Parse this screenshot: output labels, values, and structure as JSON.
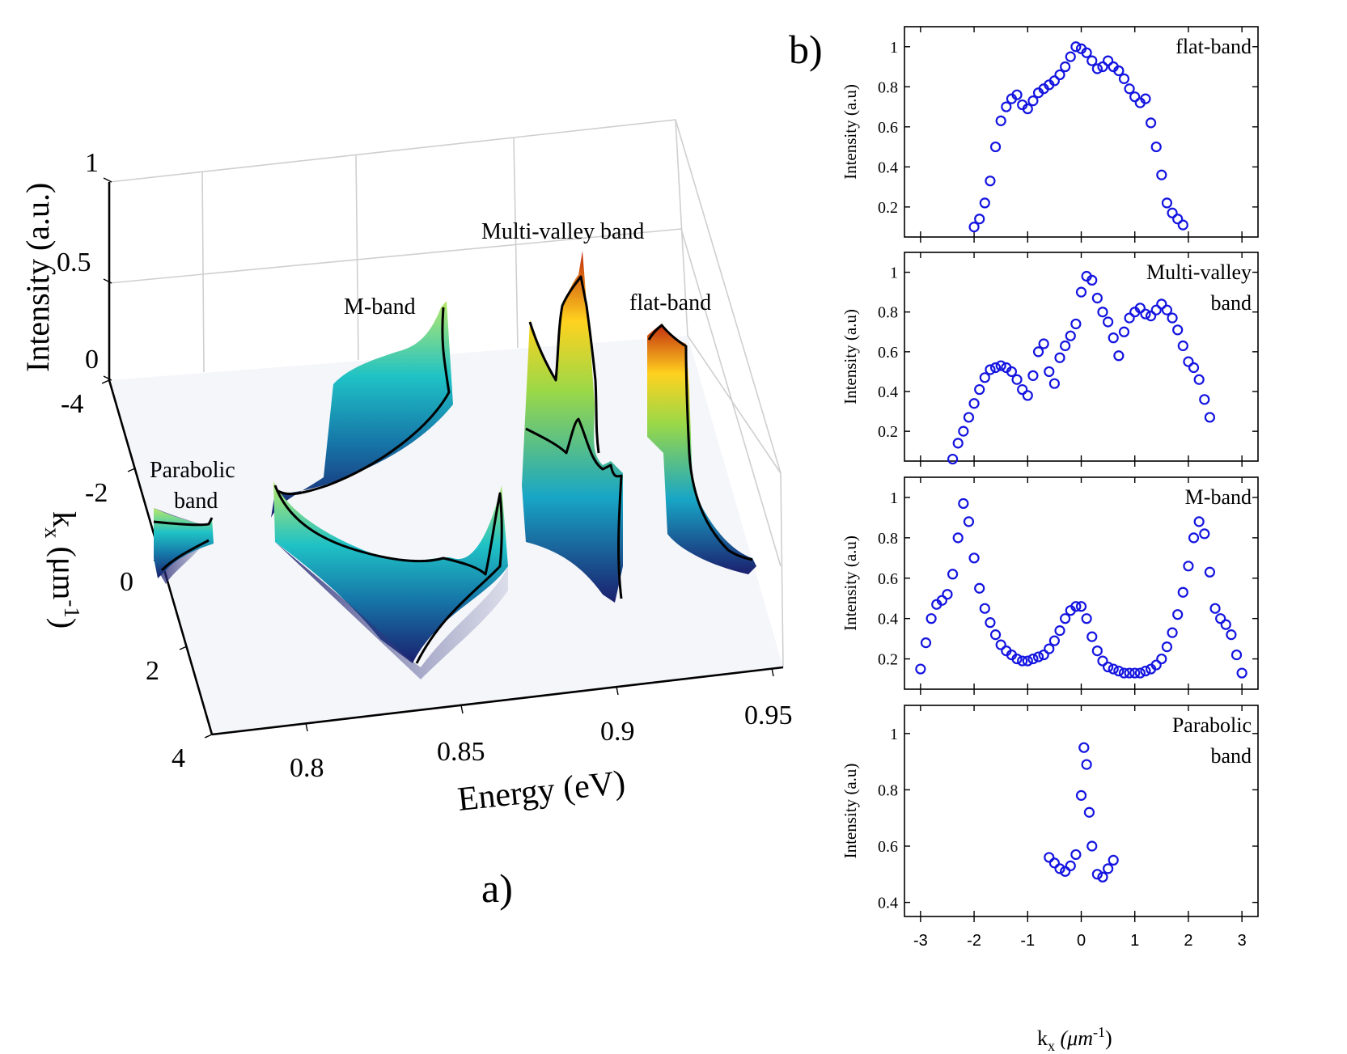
{
  "panel_a": {
    "panel_label": "a)",
    "title": "",
    "z_axis_label": "Intensity (a.u.)",
    "y_axis_label": "k",
    "y_axis_label_sub": "x",
    "y_axis_label_unit": " (μm",
    "y_axis_label_exp": "-1",
    "y_axis_label_close": ")",
    "x_axis_label": "Energy (eV)",
    "z_ticks": [
      "0",
      "0.5",
      "1"
    ],
    "y_ticks": [
      "-4",
      "-2",
      "0",
      "2",
      "4"
    ],
    "x_ticks": [
      "0.8",
      "0.85",
      "0.9",
      "0.95"
    ],
    "annotations": {
      "parabolic_line1": "Parabolic",
      "parabolic_line2": "band",
      "m_band": "M-band",
      "multi_valley": "Multi-valley band",
      "flat_band": "flat-band"
    },
    "colors": {
      "low": "#1b1f6e",
      "mid": "#1fb0c8",
      "high": "#ffd21f",
      "peak": "#b81c0c",
      "floor": "#c9cce0"
    }
  },
  "panel_b": {
    "panel_label": "b)",
    "ylabel": "Intensity (a.u)",
    "xlabel_main": "k",
    "xlabel_sub": "x",
    "xlabel_unit": " (μm",
    "xlabel_exp": "-1",
    "xlabel_close": ")",
    "x_ticks": [
      "-3",
      "-2",
      "-1",
      "0",
      "1",
      "2",
      "3"
    ],
    "marker_color": "#1414e0"
  },
  "chart_data": [
    {
      "type": "surface",
      "title": "",
      "xlabel": "Energy (eV)",
      "ylabel": "k_x (μm^-1)",
      "zlabel": "Intensity (a.u.)",
      "xlim": [
        0.78,
        0.95
      ],
      "ylim": [
        -4,
        4
      ],
      "zlim": [
        0,
        1
      ],
      "bands": [
        {
          "name": "Parabolic band",
          "energy_at_k0": 0.78
        },
        {
          "name": "M-band",
          "energy_at_k0": 0.81,
          "energy_at_kmax": 0.855
        },
        {
          "name": "Multi-valley band",
          "energy_range": [
            0.87,
            0.9
          ]
        },
        {
          "name": "flat-band",
          "energy": 0.91
        }
      ]
    },
    {
      "type": "scatter",
      "label_line1": "flat-band",
      "label_line2": "",
      "xlim": [
        -3.3,
        3.3
      ],
      "ylim": [
        0.05,
        1.1
      ],
      "yticks": [
        "0.2",
        "0.4",
        "0.6",
        "0.8",
        "1"
      ],
      "x": [
        -2.0,
        -1.9,
        -1.8,
        -1.7,
        -1.6,
        -1.5,
        -1.4,
        -1.3,
        -1.2,
        -1.1,
        -1.0,
        -0.9,
        -0.8,
        -0.7,
        -0.6,
        -0.5,
        -0.4,
        -0.3,
        -0.2,
        -0.1,
        0.0,
        0.1,
        0.2,
        0.3,
        0.4,
        0.5,
        0.6,
        0.7,
        0.8,
        0.9,
        1.0,
        1.1,
        1.2,
        1.3,
        1.4,
        1.5,
        1.6,
        1.7,
        1.8,
        1.9
      ],
      "y": [
        0.1,
        0.14,
        0.22,
        0.33,
        0.5,
        0.63,
        0.7,
        0.74,
        0.76,
        0.71,
        0.69,
        0.73,
        0.77,
        0.79,
        0.81,
        0.83,
        0.86,
        0.9,
        0.95,
        1.0,
        0.99,
        0.97,
        0.93,
        0.89,
        0.9,
        0.93,
        0.9,
        0.88,
        0.84,
        0.79,
        0.75,
        0.72,
        0.74,
        0.62,
        0.5,
        0.36,
        0.22,
        0.17,
        0.14,
        0.11
      ]
    },
    {
      "type": "scatter",
      "label_line1": "Multi-valley",
      "label_line2": "band",
      "xlim": [
        -3.3,
        3.3
      ],
      "ylim": [
        0.05,
        1.1
      ],
      "yticks": [
        "0.2",
        "0.4",
        "0.6",
        "0.8",
        "1"
      ],
      "x": [
        -2.4,
        -2.3,
        -2.2,
        -2.1,
        -2.0,
        -1.9,
        -1.8,
        -1.7,
        -1.6,
        -1.5,
        -1.4,
        -1.3,
        -1.2,
        -1.1,
        -1.0,
        -0.9,
        -0.8,
        -0.7,
        -0.6,
        -0.5,
        -0.4,
        -0.3,
        -0.2,
        -0.1,
        0.0,
        0.1,
        0.2,
        0.3,
        0.4,
        0.5,
        0.6,
        0.7,
        0.8,
        0.9,
        1.0,
        1.1,
        1.2,
        1.3,
        1.4,
        1.5,
        1.6,
        1.7,
        1.8,
        1.9,
        2.0,
        2.1,
        2.2,
        2.3,
        2.4
      ],
      "y": [
        0.06,
        0.14,
        0.2,
        0.27,
        0.34,
        0.41,
        0.47,
        0.51,
        0.52,
        0.53,
        0.52,
        0.5,
        0.46,
        0.41,
        0.38,
        0.48,
        0.6,
        0.64,
        0.5,
        0.44,
        0.57,
        0.63,
        0.68,
        0.74,
        0.9,
        0.98,
        0.96,
        0.87,
        0.8,
        0.75,
        0.67,
        0.58,
        0.7,
        0.77,
        0.8,
        0.82,
        0.79,
        0.78,
        0.81,
        0.84,
        0.81,
        0.77,
        0.71,
        0.63,
        0.55,
        0.52,
        0.46,
        0.36,
        0.27
      ]
    },
    {
      "type": "scatter",
      "label_line1": "M-band",
      "label_line2": "",
      "xlim": [
        -3.3,
        3.3
      ],
      "ylim": [
        0.05,
        1.1
      ],
      "yticks": [
        "0.2",
        "0.4",
        "0.6",
        "0.8",
        "1"
      ],
      "x": [
        -3.0,
        -2.9,
        -2.8,
        -2.7,
        -2.6,
        -2.5,
        -2.4,
        -2.3,
        -2.2,
        -2.1,
        -2.0,
        -1.9,
        -1.8,
        -1.7,
        -1.6,
        -1.5,
        -1.4,
        -1.3,
        -1.2,
        -1.1,
        -1.0,
        -0.9,
        -0.8,
        -0.7,
        -0.6,
        -0.5,
        -0.4,
        -0.3,
        -0.2,
        -0.1,
        0.0,
        0.1,
        0.2,
        0.3,
        0.4,
        0.5,
        0.6,
        0.7,
        0.8,
        0.9,
        1.0,
        1.1,
        1.2,
        1.3,
        1.4,
        1.5,
        1.6,
        1.7,
        1.8,
        1.9,
        2.0,
        2.1,
        2.2,
        2.3,
        2.4,
        2.5,
        2.6,
        2.7,
        2.8,
        2.9,
        3.0
      ],
      "y": [
        0.15,
        0.28,
        0.4,
        0.47,
        0.49,
        0.52,
        0.62,
        0.8,
        0.97,
        0.88,
        0.7,
        0.55,
        0.45,
        0.38,
        0.32,
        0.27,
        0.24,
        0.22,
        0.2,
        0.19,
        0.19,
        0.2,
        0.21,
        0.22,
        0.25,
        0.29,
        0.34,
        0.4,
        0.44,
        0.46,
        0.46,
        0.4,
        0.31,
        0.24,
        0.19,
        0.16,
        0.15,
        0.14,
        0.13,
        0.13,
        0.13,
        0.13,
        0.14,
        0.15,
        0.17,
        0.2,
        0.26,
        0.33,
        0.42,
        0.53,
        0.66,
        0.8,
        0.88,
        0.82,
        0.63,
        0.45,
        0.4,
        0.37,
        0.32,
        0.22,
        0.13
      ]
    },
    {
      "type": "scatter",
      "label_line1": "Parabolic",
      "label_line2": "band",
      "xlim": [
        -3.3,
        3.3
      ],
      "ylim": [
        0.35,
        1.1
      ],
      "yticks": [
        "0.4",
        "0.6",
        "0.8",
        "1"
      ],
      "x": [
        -0.6,
        -0.5,
        -0.4,
        -0.3,
        -0.2,
        -0.1,
        0.0,
        0.05,
        0.1,
        0.15,
        0.2,
        0.3,
        0.4,
        0.5,
        0.6
      ],
      "y": [
        0.56,
        0.54,
        0.52,
        0.51,
        0.53,
        0.57,
        0.78,
        0.95,
        0.89,
        0.72,
        0.6,
        0.5,
        0.49,
        0.52,
        0.55
      ]
    }
  ]
}
